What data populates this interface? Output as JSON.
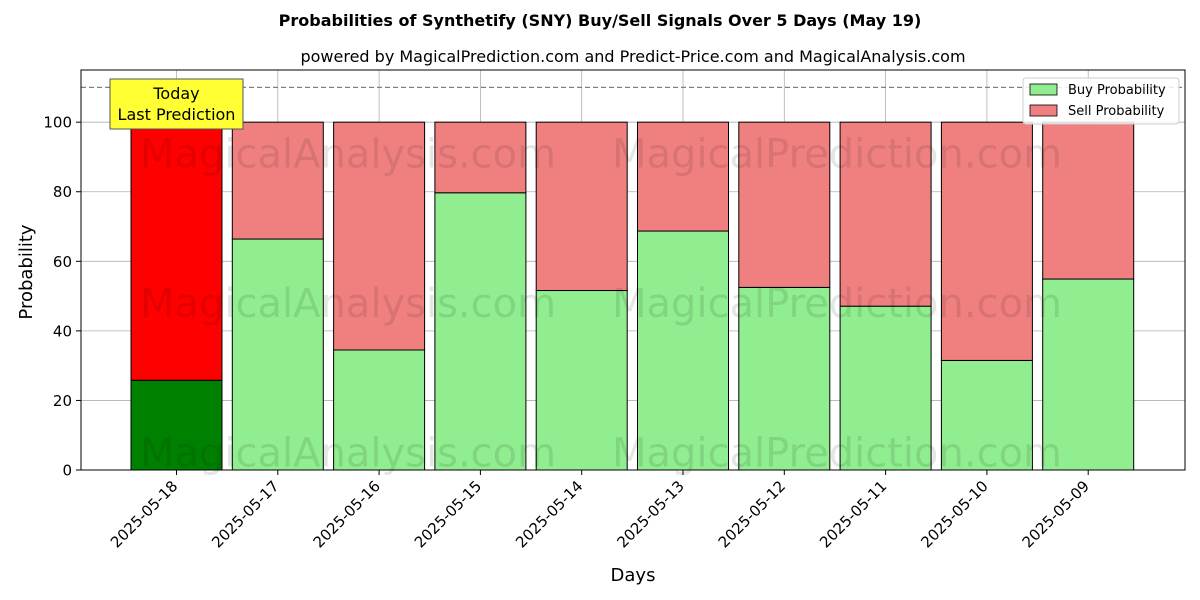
{
  "chart_data": {
    "type": "bar",
    "stacked": true,
    "title": "Probabilities of Synthetify (SNY) Buy/Sell Signals Over 5 Days (May 19)",
    "subtitle": "powered by MagicalPrediction.com and Predict-Price.com and MagicalAnalysis.com",
    "xlabel": "Days",
    "ylabel": "Probability",
    "ylim": [
      0,
      115
    ],
    "yticks": [
      0,
      20,
      40,
      60,
      80,
      100
    ],
    "reference_line": 110,
    "grid": true,
    "legend_position": "top-right",
    "categories": [
      "2025-05-18",
      "2025-05-17",
      "2025-05-16",
      "2025-05-15",
      "2025-05-14",
      "2025-05-13",
      "2025-05-12",
      "2025-05-11",
      "2025-05-10",
      "2025-05-09"
    ],
    "series": [
      {
        "name": "Buy Probability",
        "values": [
          25.8,
          66.4,
          34.5,
          79.7,
          51.6,
          68.7,
          52.5,
          47.1,
          31.5,
          54.9
        ],
        "color": "#90ee90",
        "highlight_color": "#008000"
      },
      {
        "name": "Sell Probability",
        "values": [
          74.2,
          33.6,
          65.5,
          20.3,
          48.4,
          31.3,
          47.5,
          52.9,
          68.5,
          45.1
        ],
        "color": "#f08080",
        "highlight_color": "#ff0000"
      }
    ],
    "annotation": {
      "lines": [
        "Today",
        "Last Prediction"
      ],
      "background": "#ffff33"
    },
    "watermarks": [
      "MagicalAnalysis.com",
      "MagicalPrediction.com"
    ]
  }
}
